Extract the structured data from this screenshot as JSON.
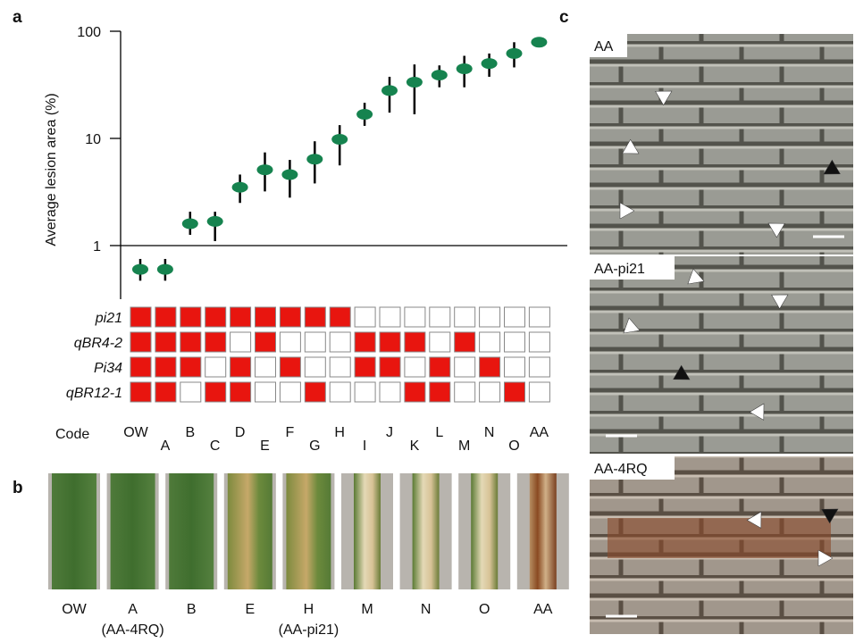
{
  "panels": [
    "a",
    "b",
    "c"
  ],
  "chart_data": {
    "type": "dot",
    "ylabel": "Average lesion area  (%)",
    "log_scale": true,
    "categories": [
      "OW",
      "A",
      "B",
      "C",
      "D",
      "E",
      "F",
      "G",
      "H",
      "I",
      "J",
      "K",
      "L",
      "M",
      "N",
      "O",
      "AA"
    ],
    "values": [
      0.6,
      0.6,
      1.6,
      1.68,
      3.5,
      5.1,
      4.6,
      6.4,
      9.8,
      16.8,
      28,
      33.5,
      39,
      44.7,
      50,
      62,
      79
    ],
    "upper": [
      0.75,
      0.75,
      2.07,
      2.07,
      4.6,
      7.4,
      6.3,
      9.4,
      13.3,
      21.5,
      37.6,
      49,
      48,
      59,
      62,
      79,
      null
    ],
    "lower": [
      0.47,
      0.47,
      1.26,
      1.1,
      2.5,
      3.2,
      2.8,
      3.8,
      5.6,
      13.1,
      17.4,
      16.8,
      30,
      30,
      37.6,
      46,
      null
    ],
    "color": "#16834f",
    "ylim": [
      0.316,
      100
    ],
    "yticks": [
      1,
      10,
      100
    ],
    "reference_line": 1
  },
  "genotypes": {
    "code_label": "Code",
    "color": "#e8150f",
    "rows": [
      {
        "name": "pi21",
        "present": [
          true,
          true,
          true,
          true,
          true,
          true,
          true,
          true,
          true,
          false,
          false,
          false,
          false,
          false,
          false,
          false,
          false
        ]
      },
      {
        "name": "qBR4-2",
        "present": [
          true,
          true,
          true,
          true,
          false,
          true,
          false,
          false,
          false,
          true,
          true,
          true,
          false,
          true,
          false,
          false,
          false
        ]
      },
      {
        "name": "Pi34",
        "present": [
          true,
          true,
          true,
          false,
          true,
          false,
          true,
          false,
          false,
          true,
          true,
          false,
          true,
          false,
          true,
          false,
          false
        ]
      },
      {
        "name": "qBR12-1",
        "present": [
          true,
          true,
          false,
          true,
          true,
          false,
          false,
          true,
          false,
          false,
          false,
          true,
          true,
          false,
          false,
          true,
          false
        ]
      }
    ]
  },
  "leaves": {
    "labels": [
      "OW",
      "A",
      "B",
      "E",
      "H",
      "M",
      "N",
      "O",
      "AA"
    ],
    "sublabels": [
      "(AA-4RQ)",
      "(AA-pi21)"
    ]
  },
  "micrographs": {
    "labels": [
      "AA",
      "AA-pi21",
      "AA-4RQ"
    ]
  }
}
